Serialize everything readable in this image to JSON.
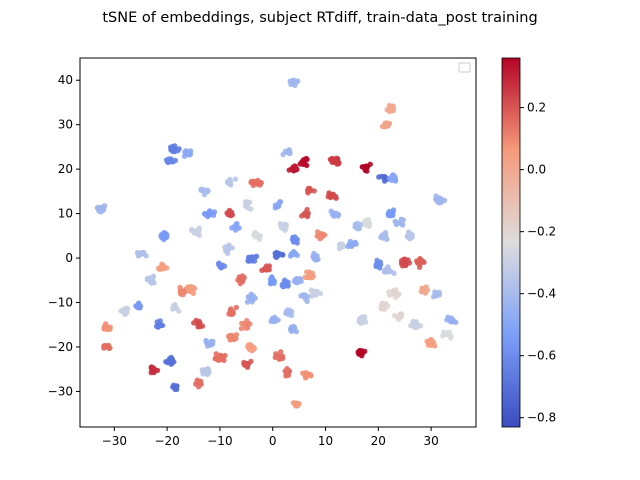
{
  "chart_data": {
    "type": "scatter",
    "title": "tSNE of embeddings, subject RTdiff, train-data_post training",
    "xlabel": "",
    "ylabel": "",
    "xlim": [
      -36.5,
      38.5
    ],
    "ylim": [
      -38,
      45
    ],
    "xticks": [
      -30,
      -20,
      -10,
      0,
      10,
      20,
      30
    ],
    "yticks": [
      -30,
      -20,
      -10,
      0,
      10,
      20,
      30,
      40
    ],
    "grid": false,
    "legend": "upper right (empty)",
    "colormap": "coolwarm",
    "color_range": [
      -0.83,
      0.36
    ],
    "colorbar_ticks": [
      0.2,
      0.0,
      -0.2,
      -0.4,
      -0.6,
      -0.8
    ],
    "colorbar_tick_labels": [
      "0.2",
      "0.0",
      "−0.2",
      "−0.4",
      "−0.6",
      "−0.8"
    ],
    "clusters": [
      {
        "x": 4,
        "y": 39.5,
        "c": -0.42
      },
      {
        "x": -32.5,
        "y": 11,
        "c": -0.42
      },
      {
        "x": 21.5,
        "y": 30,
        "c": 0.02
      },
      {
        "x": 22.5,
        "y": 33.5,
        "c": 0.0
      },
      {
        "x": -18.5,
        "y": 24.5,
        "c": -0.65
      },
      {
        "x": -19.5,
        "y": 22,
        "c": -0.62
      },
      {
        "x": -16,
        "y": 23.5,
        "c": -0.48
      },
      {
        "x": 4,
        "y": 20,
        "c": 0.32
      },
      {
        "x": 6,
        "y": 21.5,
        "c": 0.35
      },
      {
        "x": 12,
        "y": 22,
        "c": 0.25
      },
      {
        "x": 17.5,
        "y": 20.5,
        "c": 0.36
      },
      {
        "x": 21,
        "y": 18,
        "c": -0.72
      },
      {
        "x": 23,
        "y": 18,
        "c": -0.5
      },
      {
        "x": 31.5,
        "y": 13,
        "c": -0.42
      },
      {
        "x": 3,
        "y": 24,
        "c": -0.42
      },
      {
        "x": -3,
        "y": 17,
        "c": 0.15
      },
      {
        "x": -8,
        "y": 17,
        "c": -0.35
      },
      {
        "x": -13,
        "y": 15,
        "c": -0.4
      },
      {
        "x": -12,
        "y": 10,
        "c": -0.55
      },
      {
        "x": -14.5,
        "y": 6,
        "c": -0.3
      },
      {
        "x": -20.5,
        "y": 5,
        "c": -0.55
      },
      {
        "x": -25,
        "y": 1,
        "c": -0.38
      },
      {
        "x": -21,
        "y": -2,
        "c": 0.05
      },
      {
        "x": -23,
        "y": -5,
        "c": -0.35
      },
      {
        "x": -8,
        "y": 10,
        "c": 0.22
      },
      {
        "x": -7,
        "y": 7,
        "c": -0.5
      },
      {
        "x": -5,
        "y": 12,
        "c": -0.3
      },
      {
        "x": -3,
        "y": 5,
        "c": -0.25
      },
      {
        "x": 1,
        "y": 12,
        "c": -0.5
      },
      {
        "x": 2,
        "y": 7,
        "c": -0.3
      },
      {
        "x": 4,
        "y": 4,
        "c": -0.6
      },
      {
        "x": 6,
        "y": 10,
        "c": 0.2
      },
      {
        "x": 7,
        "y": 15,
        "c": 0.2
      },
      {
        "x": 11,
        "y": 14,
        "c": 0.22
      },
      {
        "x": 11.5,
        "y": 10,
        "c": -0.45
      },
      {
        "x": 9,
        "y": 5,
        "c": 0.1
      },
      {
        "x": 13,
        "y": 3,
        "c": -0.3
      },
      {
        "x": 16,
        "y": 7,
        "c": -0.4
      },
      {
        "x": 15,
        "y": 3,
        "c": -0.48
      },
      {
        "x": 18,
        "y": 8,
        "c": -0.25
      },
      {
        "x": 21,
        "y": 5,
        "c": -0.4
      },
      {
        "x": 22.5,
        "y": 10,
        "c": -0.55
      },
      {
        "x": 24,
        "y": 8,
        "c": -0.42
      },
      {
        "x": 26,
        "y": 5,
        "c": -0.35
      },
      {
        "x": 25,
        "y": -1,
        "c": 0.22
      },
      {
        "x": 28,
        "y": -1,
        "c": 0.18
      },
      {
        "x": 20,
        "y": -1.5,
        "c": -0.6
      },
      {
        "x": 22,
        "y": -3,
        "c": -0.38
      },
      {
        "x": 31,
        "y": -8,
        "c": -0.4
      },
      {
        "x": 29,
        "y": -7,
        "c": 0.0
      },
      {
        "x": 23,
        "y": -8,
        "c": -0.2
      },
      {
        "x": 21,
        "y": -11,
        "c": -0.2
      },
      {
        "x": 24,
        "y": -13,
        "c": -0.2
      },
      {
        "x": 27,
        "y": -15,
        "c": -0.3
      },
      {
        "x": 30,
        "y": -19,
        "c": 0.05
      },
      {
        "x": 33,
        "y": -17,
        "c": -0.25
      },
      {
        "x": 34,
        "y": -14,
        "c": -0.45
      },
      {
        "x": 17,
        "y": -14,
        "c": -0.3
      },
      {
        "x": 16.8,
        "y": -21.5,
        "c": 0.36
      },
      {
        "x": -31.5,
        "y": -15.5,
        "c": 0.08
      },
      {
        "x": -31.5,
        "y": -20,
        "c": 0.15
      },
      {
        "x": -28,
        "y": -12,
        "c": -0.3
      },
      {
        "x": -25.5,
        "y": -11,
        "c": -0.55
      },
      {
        "x": -21.5,
        "y": -15,
        "c": -0.65
      },
      {
        "x": -18.5,
        "y": -11,
        "c": -0.3
      },
      {
        "x": -17,
        "y": -7.5,
        "c": 0.1
      },
      {
        "x": -15.5,
        "y": -7,
        "c": 0.05
      },
      {
        "x": -14,
        "y": -15,
        "c": 0.22
      },
      {
        "x": -12,
        "y": -19,
        "c": -0.45
      },
      {
        "x": -19.5,
        "y": -23,
        "c": -0.7
      },
      {
        "x": -18.5,
        "y": -29,
        "c": -0.7
      },
      {
        "x": -22.5,
        "y": -25,
        "c": 0.28
      },
      {
        "x": -14,
        "y": -28,
        "c": 0.15
      },
      {
        "x": -12.5,
        "y": -25.5,
        "c": -0.35
      },
      {
        "x": -10,
        "y": -22.5,
        "c": 0.15
      },
      {
        "x": -8,
        "y": -12,
        "c": 0.15
      },
      {
        "x": -7.5,
        "y": -18,
        "c": 0.1
      },
      {
        "x": -5,
        "y": -15,
        "c": 0.1
      },
      {
        "x": -4,
        "y": -20,
        "c": 0.05
      },
      {
        "x": -6,
        "y": -5,
        "c": 0.15
      },
      {
        "x": -4,
        "y": -9,
        "c": -0.45
      },
      {
        "x": -10,
        "y": -1.5,
        "c": -0.6
      },
      {
        "x": -8.5,
        "y": 2,
        "c": -0.35
      },
      {
        "x": -4,
        "y": 0,
        "c": -0.65
      },
      {
        "x": -1,
        "y": -2,
        "c": 0.2
      },
      {
        "x": 0,
        "y": -5,
        "c": -0.55
      },
      {
        "x": 2.5,
        "y": -6,
        "c": -0.6
      },
      {
        "x": 5,
        "y": -5,
        "c": -0.45
      },
      {
        "x": 3,
        "y": -12,
        "c": -0.4
      },
      {
        "x": 0,
        "y": -14,
        "c": -0.45
      },
      {
        "x": 4,
        "y": -16,
        "c": -0.45
      },
      {
        "x": 1,
        "y": -22,
        "c": 0.15
      },
      {
        "x": 3,
        "y": -25.5,
        "c": 0.15
      },
      {
        "x": 6.5,
        "y": -26.5,
        "c": 0.08
      },
      {
        "x": 4.5,
        "y": -33,
        "c": 0.05
      },
      {
        "x": -5,
        "y": -24,
        "c": 0.2
      },
      {
        "x": 7,
        "y": -4,
        "c": 0.05
      },
      {
        "x": 8,
        "y": 0,
        "c": -0.45
      },
      {
        "x": 8,
        "y": -8,
        "c": -0.3
      },
      {
        "x": 6,
        "y": -9,
        "c": -0.42
      },
      {
        "x": 1,
        "y": 1,
        "c": -0.7
      },
      {
        "x": 4,
        "y": 1,
        "c": -0.5
      }
    ]
  }
}
